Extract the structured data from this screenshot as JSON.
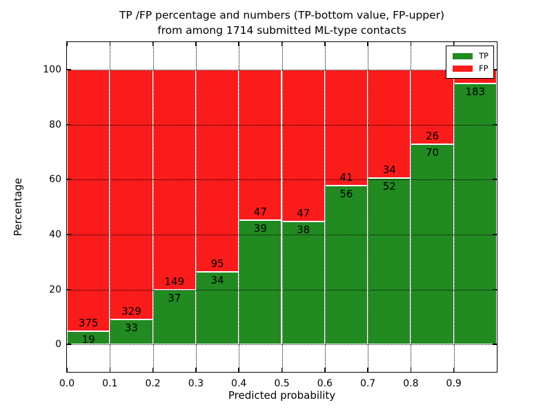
{
  "title": {
    "line1": "TP /FP percentage and numbers (TP-bottom value, FP-upper)",
    "line2": "from among 1714 submitted ML-type contacts"
  },
  "chart_data": {
    "type": "bar",
    "subtype": "stacked-percentage-histogram",
    "title": "TP /FP percentage and numbers (TP-bottom value, FP-upper) from among 1714 submitted ML-type contacts",
    "total_contacts": 1714,
    "xlabel": "Predicted probability",
    "ylabel": "Percentage",
    "xlim": [
      0.0,
      1.0
    ],
    "ylim": [
      -10,
      110
    ],
    "bin_width": 0.1,
    "grid": "dotted-black",
    "x_tick_labels": [
      "0.0",
      "0.1",
      "0.2",
      "0.3",
      "0.4",
      "0.5",
      "0.6",
      "0.7",
      "0.8",
      "0.9"
    ],
    "y_tick_values": [
      0,
      20,
      40,
      60,
      80,
      100
    ],
    "y_tick_labels": [
      "0",
      "20",
      "40",
      "60",
      "80",
      "100"
    ],
    "legend": {
      "position": "upper right",
      "entries": [
        {
          "label": "TP",
          "color": "#218a21"
        },
        {
          "label": "FP",
          "color": "#fa1b1b"
        }
      ]
    },
    "colors": {
      "tp": "#218a21",
      "fp": "#fa1b1b",
      "bar_edge": "#ffffff",
      "grid": "#000000",
      "frame": "#000000",
      "background": "#ffffff"
    },
    "bins": [
      {
        "x_start": 0.0,
        "x_end": 0.1,
        "tp": 19,
        "fp": 375,
        "tp_label": "19",
        "fp_label": "375"
      },
      {
        "x_start": 0.1,
        "x_end": 0.2,
        "tp": 33,
        "fp": 329,
        "tp_label": "33",
        "fp_label": "329"
      },
      {
        "x_start": 0.2,
        "x_end": 0.3,
        "tp": 37,
        "fp": 149,
        "tp_label": "37",
        "fp_label": "149"
      },
      {
        "x_start": 0.3,
        "x_end": 0.4,
        "tp": 34,
        "fp": 95,
        "tp_label": "34",
        "fp_label": "95"
      },
      {
        "x_start": 0.4,
        "x_end": 0.5,
        "tp": 39,
        "fp": 47,
        "tp_label": "39",
        "fp_label": "47"
      },
      {
        "x_start": 0.5,
        "x_end": 0.6,
        "tp": 38,
        "fp": 47,
        "tp_label": "38",
        "fp_label": "47"
      },
      {
        "x_start": 0.6,
        "x_end": 0.7,
        "tp": 56,
        "fp": 41,
        "tp_label": "56",
        "fp_label": "41"
      },
      {
        "x_start": 0.7,
        "x_end": 0.8,
        "tp": 52,
        "fp": 34,
        "tp_label": "52",
        "fp_label": "34"
      },
      {
        "x_start": 0.8,
        "x_end": 0.9,
        "tp": 70,
        "fp": 26,
        "tp_label": "70",
        "fp_label": "26"
      },
      {
        "x_start": 0.9,
        "x_end": 1.0,
        "tp": 183,
        "fp": 10,
        "tp_label": "183",
        "fp_label": ""
      }
    ]
  }
}
